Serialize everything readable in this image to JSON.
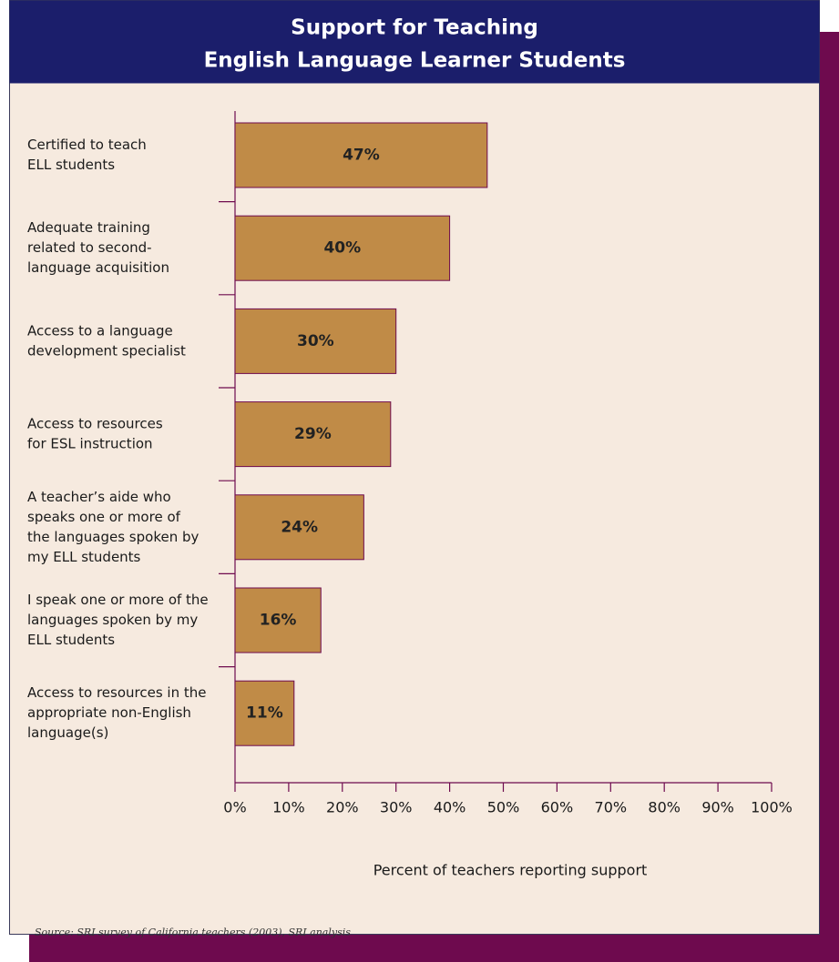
{
  "chart_data": {
    "type": "bar",
    "orientation": "horizontal",
    "title": [
      "Support for Teaching",
      "English Language Learner Students"
    ],
    "categories": [
      [
        "Certified to teach",
        "ELL students"
      ],
      [
        "Adequate training",
        "related to second-",
        "language acquisition"
      ],
      [
        "Access to a language",
        "development specialist"
      ],
      [
        "Access to resources",
        "for ESL instruction"
      ],
      [
        "A teacher’s aide who",
        "speaks one or more of",
        "the languages spoken by",
        "my ELL students"
      ],
      [
        "I speak one or more of the",
        "languages spoken by my",
        "ELL students"
      ],
      [
        "Access to resources in the",
        "appropriate non-English",
        "language(s)"
      ]
    ],
    "values": [
      47,
      40,
      30,
      29,
      24,
      16,
      11
    ],
    "value_labels": [
      "47%",
      "40%",
      "30%",
      "29%",
      "24%",
      "16%",
      "11%"
    ],
    "color": "#c08b47",
    "xlim": [
      0,
      100
    ],
    "xticks": [
      {
        "value": 0,
        "label": "0%"
      },
      {
        "value": 10,
        "label": "10%"
      },
      {
        "value": 20,
        "label": "20%"
      },
      {
        "value": 30,
        "label": "30%"
      },
      {
        "value": 40,
        "label": "40%"
      },
      {
        "value": 50,
        "label": "50%"
      },
      {
        "value": 60,
        "label": "60%"
      },
      {
        "value": 70,
        "label": "70%"
      },
      {
        "value": 80,
        "label": "80%"
      },
      {
        "value": 90,
        "label": "90%"
      },
      {
        "value": 100,
        "label": "100%"
      }
    ],
    "xlabel": "Percent of teachers reporting support",
    "source": "Source: SRI survey of California teachers (2003), SRI analysis"
  }
}
